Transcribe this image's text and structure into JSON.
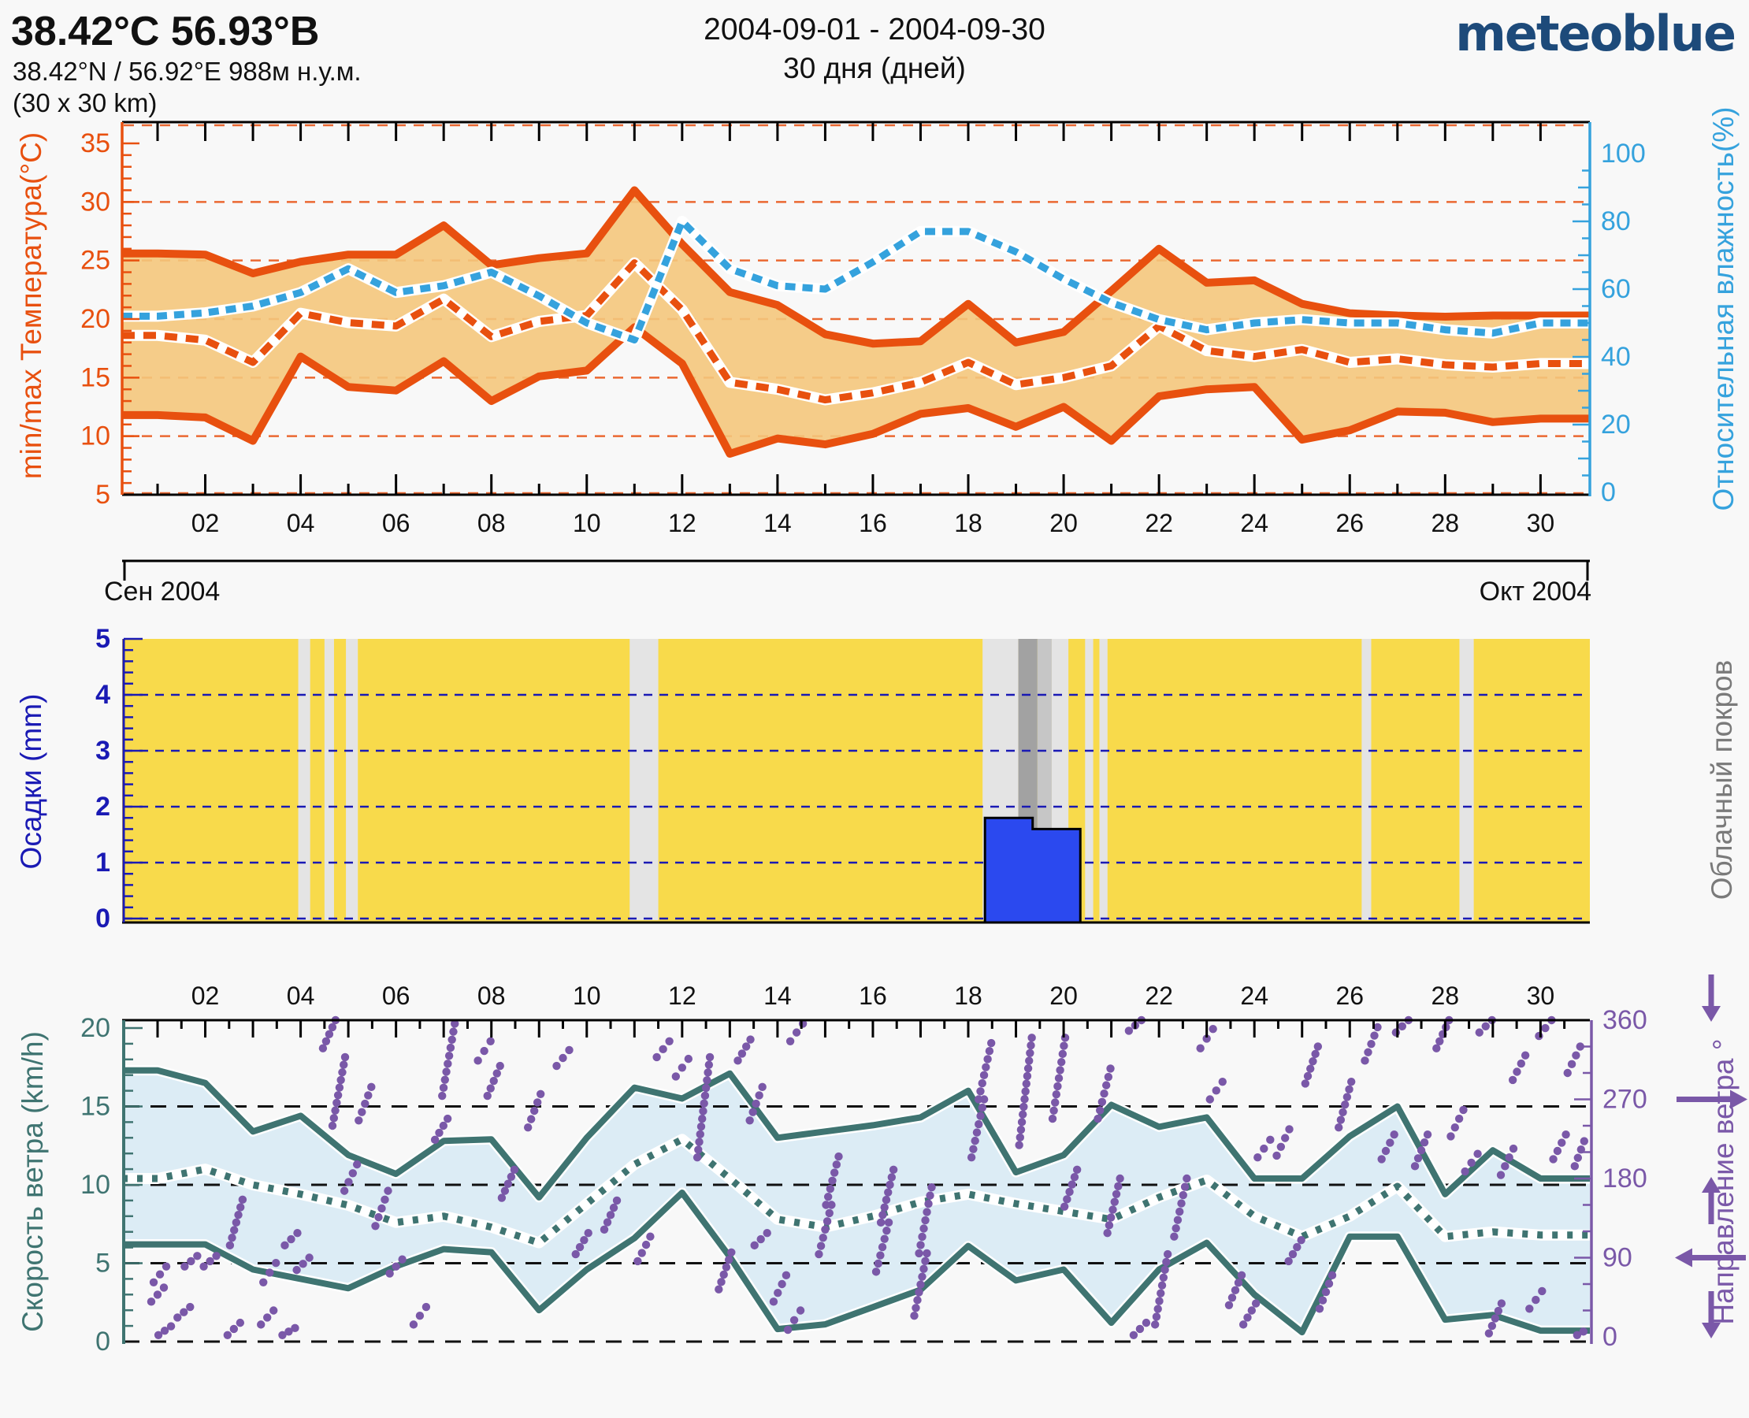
{
  "header": {
    "title": "38.42°С 56.93°В",
    "coordinates": "38.42°N / 56.92°E   988м н.у.м.",
    "area": "(30 x 30 km)",
    "date_range": "2004-09-01 - 2004-09-30",
    "duration": "30 дня (дней)",
    "logo": "meteoblue",
    "logo_color": "#1d4a7a"
  },
  "month_axis": {
    "left": "Сен 2004",
    "right": "Окт 2004"
  },
  "chart_data": [
    {
      "type": "line",
      "panel": "temperature_humidity",
      "ylabel": "min/max Температура(°C)",
      "y2label": "Относительная влажность(%)",
      "ylabel_color": "#e8500f",
      "y2label_color": "#35a2dd",
      "ylim": [
        5,
        36.8
      ],
      "y2lim": [
        0,
        100
      ],
      "yticks": [
        5,
        10,
        15,
        20,
        25,
        30,
        35
      ],
      "y2ticks": [
        0,
        20,
        40,
        60,
        80,
        100
      ],
      "gridlines": [
        10,
        15,
        20,
        25,
        30
      ],
      "days": [
        1,
        2,
        3,
        4,
        5,
        6,
        7,
        8,
        9,
        10,
        11,
        12,
        13,
        14,
        15,
        16,
        17,
        18,
        19,
        20,
        21,
        22,
        23,
        24,
        25,
        26,
        27,
        28,
        29,
        30
      ],
      "x_tick_labels": [
        "02",
        "04",
        "06",
        "08",
        "10",
        "12",
        "14",
        "16",
        "18",
        "20",
        "22",
        "24",
        "26",
        "28",
        "30"
      ],
      "fill_color": "#f4c77c",
      "series": [
        {
          "name": "temp_max",
          "color": "#e8500f",
          "style": "solid",
          "values": [
            25.6,
            25.5,
            23.9,
            24.9,
            25.5,
            25.5,
            28.0,
            24.6,
            25.2,
            25.6,
            31.0,
            26.4,
            22.3,
            21.2,
            18.7,
            17.9,
            18.1,
            21.3,
            18.0,
            18.9,
            22.4,
            26.0,
            23.1,
            23.3,
            21.3,
            20.5,
            20.3,
            20.2,
            20.3,
            20.3
          ]
        },
        {
          "name": "temp_min",
          "color": "#e8500f",
          "style": "solid",
          "values": [
            11.8,
            11.6,
            9.6,
            16.8,
            14.2,
            13.9,
            16.4,
            13.0,
            15.1,
            15.6,
            19.3,
            16.2,
            8.5,
            9.8,
            9.3,
            10.2,
            11.9,
            12.4,
            10.8,
            12.5,
            9.6,
            13.4,
            14.0,
            14.2,
            9.7,
            10.5,
            12.1,
            12.0,
            11.2,
            11.5
          ]
        },
        {
          "name": "temp_mean",
          "color": "#e8500f",
          "style": "dashed",
          "values": [
            18.6,
            18.2,
            16.3,
            20.5,
            19.7,
            19.4,
            21.7,
            18.5,
            19.8,
            20.3,
            24.8,
            20.8,
            14.6,
            14.0,
            13.1,
            13.7,
            14.6,
            16.3,
            14.4,
            15.0,
            16.0,
            19.4,
            17.3,
            16.8,
            17.4,
            16.3,
            16.6,
            16.1,
            15.9,
            16.2
          ]
        },
        {
          "name": "humidity",
          "color": "#35a2dd",
          "style": "dashed",
          "axis": "y2",
          "values": [
            52,
            53,
            55,
            59,
            66,
            59,
            61,
            65,
            58,
            50,
            45,
            80,
            66,
            61,
            60,
            68,
            77,
            77,
            71,
            63,
            56,
            51,
            48,
            50,
            51,
            50,
            50,
            48,
            47,
            50
          ]
        }
      ]
    },
    {
      "type": "bar",
      "panel": "precipitation_cloud",
      "ylabel": "Осадки (mm)",
      "y2label": "Облачный покров",
      "ylabel_color": "#1a1ab4",
      "y2label_color": "#7a7a7a",
      "ylim": [
        0,
        5.06
      ],
      "yticks": [
        0,
        1,
        2,
        3,
        4,
        5
      ],
      "gridlines": [
        1,
        2,
        3,
        4
      ],
      "background_color": "#f8da4b",
      "bar_color": "#2b49ef",
      "bars": [
        {
          "day": 19,
          "value_mm": 1.8
        },
        {
          "day": 20,
          "value_mm": 1.6
        }
      ],
      "shade_colors": {
        "light": "#e4e4e4",
        "medium": "#c6c6c6",
        "dark": "#a2a2a2"
      },
      "cloud_bands": [
        {
          "from_day": 3.95,
          "to_day": 4.2,
          "shade": "light"
        },
        {
          "from_day": 4.5,
          "to_day": 4.7,
          "shade": "light"
        },
        {
          "from_day": 4.95,
          "to_day": 5.2,
          "shade": "light"
        },
        {
          "from_day": 10.9,
          "to_day": 11.5,
          "shade": "light"
        },
        {
          "from_day": 18.3,
          "to_day": 19.05,
          "shade": "light"
        },
        {
          "from_day": 19.05,
          "to_day": 19.45,
          "shade": "dark"
        },
        {
          "from_day": 19.45,
          "to_day": 19.75,
          "shade": "medium"
        },
        {
          "from_day": 19.75,
          "to_day": 20.1,
          "shade": "light"
        },
        {
          "from_day": 20.45,
          "to_day": 20.62,
          "shade": "light"
        },
        {
          "from_day": 20.75,
          "to_day": 20.92,
          "shade": "light"
        },
        {
          "from_day": 26.25,
          "to_day": 26.45,
          "shade": "light"
        },
        {
          "from_day": 28.3,
          "to_day": 28.6,
          "shade": "light"
        }
      ]
    },
    {
      "type": "line",
      "panel": "wind",
      "ylabel": "Скорость ветра (km/h)",
      "y2label": "Направление ветра °",
      "ylabel_color": "#3f7471",
      "y2label_color": "#7a58a8",
      "ylim": [
        0,
        20.9
      ],
      "y2lim": [
        0,
        360
      ],
      "yticks": [
        0,
        5,
        10,
        15,
        20
      ],
      "y2ticks": [
        0,
        90,
        180,
        270,
        360
      ],
      "gridlines": [
        0,
        5,
        10,
        15
      ],
      "x_tick_labels": [
        "02",
        "04",
        "06",
        "08",
        "10",
        "12",
        "14",
        "16",
        "18",
        "20",
        "22",
        "24",
        "26",
        "28",
        "30"
      ],
      "fill_color": "#dcecf5",
      "series": [
        {
          "name": "wind_max",
          "color": "#3f7471",
          "style": "solid",
          "values": [
            17.3,
            16.5,
            13.4,
            14.4,
            11.9,
            10.7,
            12.8,
            12.9,
            9.2,
            13.0,
            16.2,
            15.5,
            17.1,
            13.0,
            13.4,
            13.8,
            14.3,
            16.0,
            10.8,
            11.9,
            15.1,
            13.7,
            14.3,
            10.4,
            10.4,
            13.1,
            15.0,
            9.4,
            12.2,
            10.4
          ]
        },
        {
          "name": "wind_min",
          "color": "#3f7471",
          "style": "solid",
          "values": [
            6.2,
            6.2,
            4.6,
            4.0,
            3.4,
            4.8,
            5.9,
            5.7,
            2.0,
            4.6,
            6.6,
            9.5,
            5.4,
            0.8,
            1.1,
            2.2,
            3.3,
            6.1,
            3.9,
            4.6,
            1.2,
            4.6,
            6.3,
            3.0,
            0.6,
            6.7,
            6.7,
            1.4,
            1.7,
            0.7
          ]
        },
        {
          "name": "wind_mean",
          "color": "#3f7471",
          "style": "dotted",
          "values": [
            10.4,
            11.0,
            10.0,
            9.4,
            8.7,
            7.6,
            8.0,
            7.3,
            6.3,
            8.8,
            11.3,
            12.9,
            10.4,
            7.8,
            7.3,
            8.0,
            8.9,
            9.4,
            8.8,
            8.3,
            7.8,
            9.2,
            10.3,
            8.0,
            6.7,
            8.0,
            9.9,
            6.7,
            7.0,
            6.8
          ]
        }
      ],
      "direction_dots_color": "#7a58a8",
      "direction_runs": [
        [
          1.0,
          40,
          56
        ],
        [
          1.05,
          62,
          80
        ],
        [
          1.15,
          2,
          12
        ],
        [
          1.55,
          22,
          34
        ],
        [
          1.7,
          80,
          92
        ],
        [
          2.1,
          80,
          92
        ],
        [
          2.65,
          104,
          156
        ],
        [
          2.6,
          2,
          16
        ],
        [
          3.3,
          14,
          30
        ],
        [
          3.35,
          62,
          84
        ],
        [
          3.75,
          2,
          10
        ],
        [
          3.8,
          104,
          118
        ],
        [
          4.05,
          76,
          90
        ],
        [
          4.6,
          328,
          360
        ],
        [
          4.8,
          240,
          318
        ],
        [
          5.05,
          166,
          196
        ],
        [
          5.35,
          246,
          284
        ],
        [
          5.7,
          126,
          166
        ],
        [
          6.0,
          72,
          88
        ],
        [
          6.5,
          14,
          34
        ],
        [
          6.95,
          224,
          248
        ],
        [
          7.1,
          274,
          356
        ],
        [
          7.85,
          314,
          336
        ],
        [
          8.05,
          274,
          308
        ],
        [
          8.35,
          158,
          190
        ],
        [
          8.9,
          238,
          276
        ],
        [
          9.5,
          308,
          326
        ],
        [
          9.9,
          94,
          118
        ],
        [
          10.5,
          122,
          155
        ],
        [
          11.2,
          86,
          114
        ],
        [
          11.6,
          318,
          336
        ],
        [
          12.0,
          296,
          316
        ],
        [
          12.45,
          204,
          318
        ],
        [
          12.9,
          54,
          96
        ],
        [
          13.3,
          314,
          338
        ],
        [
          13.55,
          246,
          284
        ],
        [
          13.65,
          104,
          118
        ],
        [
          14.05,
          40,
          70
        ],
        [
          14.4,
          336,
          356
        ],
        [
          14.35,
          8,
          30
        ],
        [
          15.0,
          94,
          150
        ],
        [
          15.15,
          150,
          205
        ],
        [
          16.2,
          74,
          130
        ],
        [
          16.3,
          130,
          190
        ],
        [
          17.0,
          24,
          95
        ],
        [
          17.1,
          95,
          170
        ],
        [
          18.2,
          204,
          270
        ],
        [
          18.35,
          270,
          334
        ],
        [
          19.2,
          218,
          340
        ],
        [
          19.9,
          248,
          340
        ],
        [
          20.15,
          148,
          190
        ],
        [
          20.85,
          248,
          305
        ],
        [
          21.05,
          118,
          180
        ],
        [
          21.5,
          348,
          360
        ],
        [
          21.6,
          2,
          16
        ],
        [
          22.05,
          14,
          94
        ],
        [
          22.45,
          114,
          180
        ],
        [
          23.0,
          328,
          350
        ],
        [
          23.2,
          270,
          290
        ],
        [
          23.6,
          36,
          70
        ],
        [
          23.9,
          14,
          38
        ],
        [
          24.2,
          204,
          224
        ],
        [
          24.6,
          206,
          236
        ],
        [
          24.85,
          86,
          110
        ],
        [
          25.2,
          288,
          330
        ],
        [
          25.5,
          32,
          70
        ],
        [
          25.9,
          238,
          290
        ],
        [
          26.45,
          314,
          352
        ],
        [
          26.8,
          202,
          230
        ],
        [
          27.1,
          346,
          360
        ],
        [
          27.5,
          194,
          230
        ],
        [
          27.95,
          328,
          360
        ],
        [
          28.25,
          228,
          258
        ],
        [
          28.55,
          188,
          208
        ],
        [
          28.85,
          346,
          360
        ],
        [
          29.05,
          4,
          38
        ],
        [
          29.3,
          184,
          214
        ],
        [
          29.55,
          292,
          320
        ],
        [
          29.9,
          32,
          52
        ],
        [
          30.1,
          342,
          360
        ],
        [
          30.4,
          202,
          230
        ],
        [
          30.7,
          300,
          330
        ],
        [
          30.85,
          194,
          232
        ],
        [
          30.9,
          2,
          10
        ]
      ],
      "direction_arrows": [
        {
          "at_deg": 360,
          "dir": "down"
        },
        {
          "at_deg": 270,
          "dir": "right"
        },
        {
          "at_deg": 180,
          "dir": "up"
        },
        {
          "at_deg": 90,
          "dir": "left"
        },
        {
          "at_deg": 0,
          "dir": "down"
        }
      ]
    }
  ]
}
